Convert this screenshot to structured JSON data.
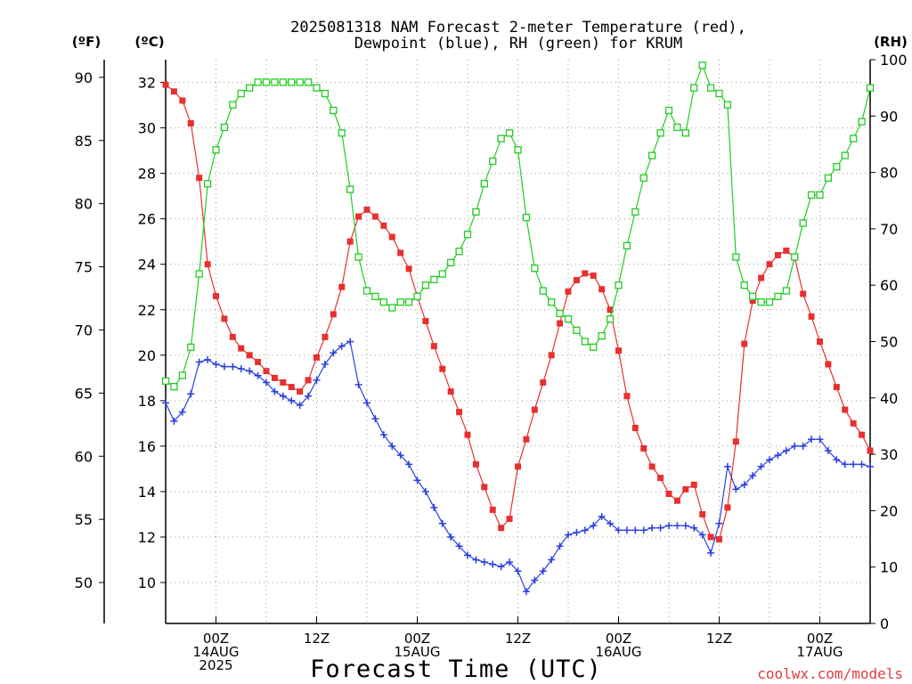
{
  "chart_data": {
    "type": "line",
    "title_lines": [
      "2025081318 NAM Forecast 2-meter Temperature (red),",
      "Dewpoint (blue), RH (green) for KRUM"
    ],
    "xlabel": "Forecast Time (UTC)",
    "credit": "coolwx.com/models",
    "units": {
      "f": "(ºF)",
      "c": "(ºC)",
      "rh": "(RH)"
    },
    "x_hours_range": [
      -6,
      78
    ],
    "f_axis": {
      "ticks": [
        "50",
        "55",
        "60",
        "65",
        "70",
        "75",
        "80",
        "85",
        "90"
      ],
      "values": [
        50,
        55,
        60,
        65,
        70,
        75,
        80,
        85,
        90
      ]
    },
    "c_axis": {
      "ticks": [
        "10",
        "12",
        "14",
        "16",
        "18",
        "20",
        "22",
        "24",
        "26",
        "28",
        "30",
        "32"
      ],
      "values": [
        10,
        12,
        14,
        16,
        18,
        20,
        22,
        24,
        26,
        28,
        30,
        32
      ],
      "range": [
        8.2,
        33.0
      ]
    },
    "rh_axis": {
      "ticks": [
        "0",
        "10",
        "20",
        "30",
        "40",
        "50",
        "60",
        "70",
        "80",
        "90",
        "100"
      ],
      "values": [
        0,
        10,
        20,
        30,
        40,
        50,
        60,
        70,
        80,
        90,
        100
      ],
      "range": [
        0,
        100
      ]
    },
    "x_ticks": [
      {
        "h": 0,
        "lines": [
          "00Z",
          "14AUG",
          "2025"
        ]
      },
      {
        "h": 12,
        "lines": [
          "12Z"
        ]
      },
      {
        "h": 24,
        "lines": [
          "00Z",
          "15AUG"
        ]
      },
      {
        "h": 36,
        "lines": [
          "12Z"
        ]
      },
      {
        "h": 48,
        "lines": [
          "00Z",
          "16AUG"
        ]
      },
      {
        "h": 60,
        "lines": [
          "12Z"
        ]
      },
      {
        "h": 72,
        "lines": [
          "00Z",
          "17AUG"
        ]
      }
    ],
    "grid": true,
    "series": [
      {
        "name": "Temperature",
        "color": "#e83030",
        "marker": "filled-square",
        "axis": "c",
        "x": [
          -6,
          -5,
          -4,
          -3,
          -2,
          -1,
          0,
          1,
          2,
          3,
          4,
          5,
          6,
          7,
          8,
          9,
          10,
          11,
          12,
          13,
          14,
          15,
          16,
          17,
          18,
          19,
          20,
          21,
          22,
          23,
          24,
          25,
          26,
          27,
          28,
          29,
          30,
          31,
          32,
          33,
          34,
          35,
          36,
          37,
          38,
          39,
          40,
          41,
          42,
          43,
          44,
          45,
          46,
          47,
          48,
          49,
          50,
          51,
          52,
          53,
          54,
          55,
          56,
          57,
          58,
          59,
          60,
          61,
          62,
          63,
          64,
          65,
          66,
          67,
          68,
          69,
          70,
          71,
          72,
          73,
          74,
          75,
          76,
          77,
          78
        ],
        "values": [
          31.9,
          31.6,
          31.2,
          30.2,
          27.8,
          24.0,
          22.6,
          21.6,
          20.8,
          20.3,
          20.0,
          19.7,
          19.3,
          19.0,
          18.8,
          18.6,
          18.4,
          18.9,
          19.9,
          20.8,
          21.8,
          23.0,
          25.0,
          26.1,
          26.4,
          26.1,
          25.7,
          25.2,
          24.5,
          23.8,
          22.6,
          21.5,
          20.4,
          19.4,
          18.4,
          17.5,
          16.5,
          15.2,
          14.2,
          13.2,
          12.4,
          12.8,
          15.1,
          16.3,
          17.6,
          18.8,
          20.0,
          21.4,
          22.8,
          23.3,
          23.6,
          23.5,
          22.9,
          22.0,
          20.2,
          18.2,
          16.8,
          15.9,
          15.1,
          14.6,
          13.9,
          13.6,
          14.1,
          14.3,
          13.0,
          12.0,
          11.9,
          13.3,
          16.2,
          20.5,
          22.4,
          23.4,
          24.0,
          24.4,
          24.6,
          24.3,
          22.7,
          21.7,
          20.6,
          19.6,
          18.6,
          17.6,
          17.0,
          16.5,
          15.8
        ],
        "note": "values in deg C"
      },
      {
        "name": "Dewpoint",
        "color": "#2b3fe0",
        "marker": "plus",
        "axis": "c",
        "x": [
          -6,
          -5,
          -4,
          -3,
          -2,
          -1,
          0,
          1,
          2,
          3,
          4,
          5,
          6,
          7,
          8,
          9,
          10,
          11,
          12,
          13,
          14,
          15,
          16,
          17,
          18,
          19,
          20,
          21,
          22,
          23,
          24,
          25,
          26,
          27,
          28,
          29,
          30,
          31,
          32,
          33,
          34,
          35,
          36,
          37,
          38,
          39,
          40,
          41,
          42,
          43,
          44,
          45,
          46,
          47,
          48,
          49,
          50,
          51,
          52,
          53,
          54,
          55,
          56,
          57,
          58,
          59,
          60,
          61,
          62,
          63,
          64,
          65,
          66,
          67,
          68,
          69,
          70,
          71,
          72,
          73,
          74,
          75,
          76,
          77,
          78
        ],
        "values": [
          17.9,
          17.1,
          17.5,
          18.3,
          19.7,
          19.8,
          19.6,
          19.5,
          19.5,
          19.4,
          19.3,
          19.1,
          18.8,
          18.4,
          18.2,
          18.0,
          17.8,
          18.2,
          18.9,
          19.6,
          20.1,
          20.4,
          20.6,
          18.7,
          17.9,
          17.2,
          16.5,
          16.0,
          15.6,
          15.2,
          14.5,
          14.0,
          13.3,
          12.6,
          12.0,
          11.6,
          11.2,
          11.0,
          10.9,
          10.8,
          10.7,
          10.9,
          10.5,
          9.6,
          10.1,
          10.5,
          11.0,
          11.6,
          12.1,
          12.2,
          12.3,
          12.5,
          12.9,
          12.6,
          12.3,
          12.3,
          12.3,
          12.3,
          12.4,
          12.4,
          12.5,
          12.5,
          12.5,
          12.4,
          12.1,
          11.3,
          12.6,
          15.1,
          14.1,
          14.3,
          14.7,
          15.1,
          15.4,
          15.6,
          15.8,
          16.0,
          16.0,
          16.3,
          16.3,
          15.8,
          15.4,
          15.2,
          15.2,
          15.2,
          15.1
        ],
        "note": "values in deg C"
      },
      {
        "name": "RH",
        "color": "#22cc22",
        "marker": "open-square",
        "axis": "rh",
        "x": [
          -6,
          -5,
          -4,
          -3,
          -2,
          -1,
          0,
          1,
          2,
          3,
          4,
          5,
          6,
          7,
          8,
          9,
          10,
          11,
          12,
          13,
          14,
          15,
          16,
          17,
          18,
          19,
          20,
          21,
          22,
          23,
          24,
          25,
          26,
          27,
          28,
          29,
          30,
          31,
          32,
          33,
          34,
          35,
          36,
          37,
          38,
          39,
          40,
          41,
          42,
          43,
          44,
          45,
          46,
          47,
          48,
          49,
          50,
          51,
          52,
          53,
          54,
          55,
          56,
          57,
          58,
          59,
          60,
          61,
          62,
          63,
          64,
          65,
          66,
          67,
          68,
          69,
          70,
          71,
          72,
          73,
          74,
          75,
          76,
          77,
          78
        ],
        "values": [
          43,
          42,
          44,
          49,
          62,
          78,
          84,
          88,
          92,
          94,
          95,
          96,
          96,
          96,
          96,
          96,
          96,
          96,
          95,
          94,
          91,
          87,
          77,
          65,
          59,
          58,
          57,
          56,
          57,
          57,
          58,
          60,
          61,
          62,
          64,
          66,
          69,
          73,
          78,
          82,
          86,
          87,
          84,
          72,
          63,
          59,
          57,
          55,
          54,
          52,
          50,
          49,
          51,
          54,
          60,
          67,
          73,
          79,
          83,
          87,
          91,
          88,
          87,
          95,
          99,
          95,
          94,
          92,
          65,
          60,
          58,
          57,
          57,
          58,
          59,
          65,
          71,
          76,
          76,
          79,
          81,
          83,
          86,
          89,
          95
        ]
      }
    ]
  }
}
